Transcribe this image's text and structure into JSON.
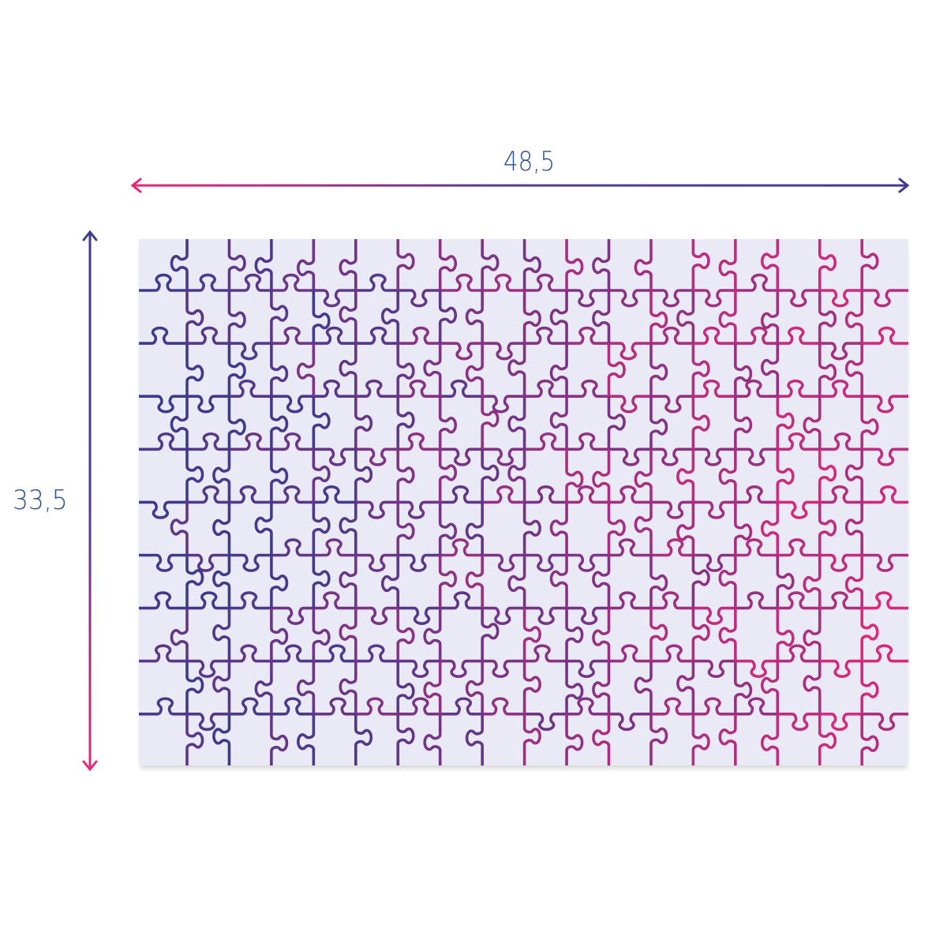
{
  "dimensions": {
    "width_label": "48,5",
    "height_label": "33,5"
  },
  "puzzle": {
    "columns": 18,
    "rows": 10,
    "pieces": 180,
    "background_color": "#e9eaf6",
    "line_color_start": "#3f3a8c",
    "line_color_end": "#e5287a"
  },
  "arrows": {
    "horizontal": {
      "color_left": "#e5287a",
      "color_right": "#3f3a8c"
    },
    "vertical": {
      "color_top": "#3f3a8c",
      "color_bottom": "#e5287a"
    }
  }
}
